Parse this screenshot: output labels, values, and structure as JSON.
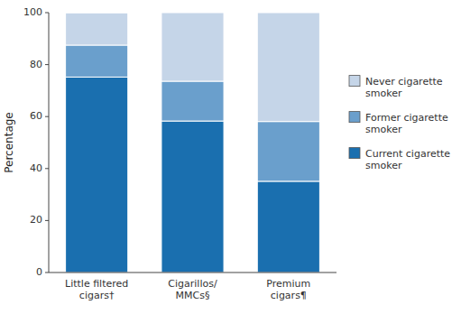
{
  "chart_data": {
    "type": "bar",
    "stacked": true,
    "categories": [
      "Little filtered\ncigars†",
      "Cigarillos/\nMMCs§",
      "Premium\ncigars¶"
    ],
    "series": [
      {
        "name": "Current cigarette\nsmoker",
        "color": "#1a6faf",
        "values": [
          75.2,
          58.3,
          35.1
        ]
      },
      {
        "name": "Former cigarette\nsmoker",
        "color": "#6a9fcc",
        "values": [
          12.3,
          15.3,
          23.0
        ]
      },
      {
        "name": "Never cigarette\nsmoker",
        "color": "#c5d5e8",
        "values": [
          12.4,
          26.4,
          41.9
        ]
      }
    ],
    "y_label": "Percentage",
    "ylim": [
      0,
      100
    ],
    "yticks": [
      0,
      20,
      40,
      60,
      80,
      100
    ],
    "grid": false,
    "legend": "right"
  }
}
